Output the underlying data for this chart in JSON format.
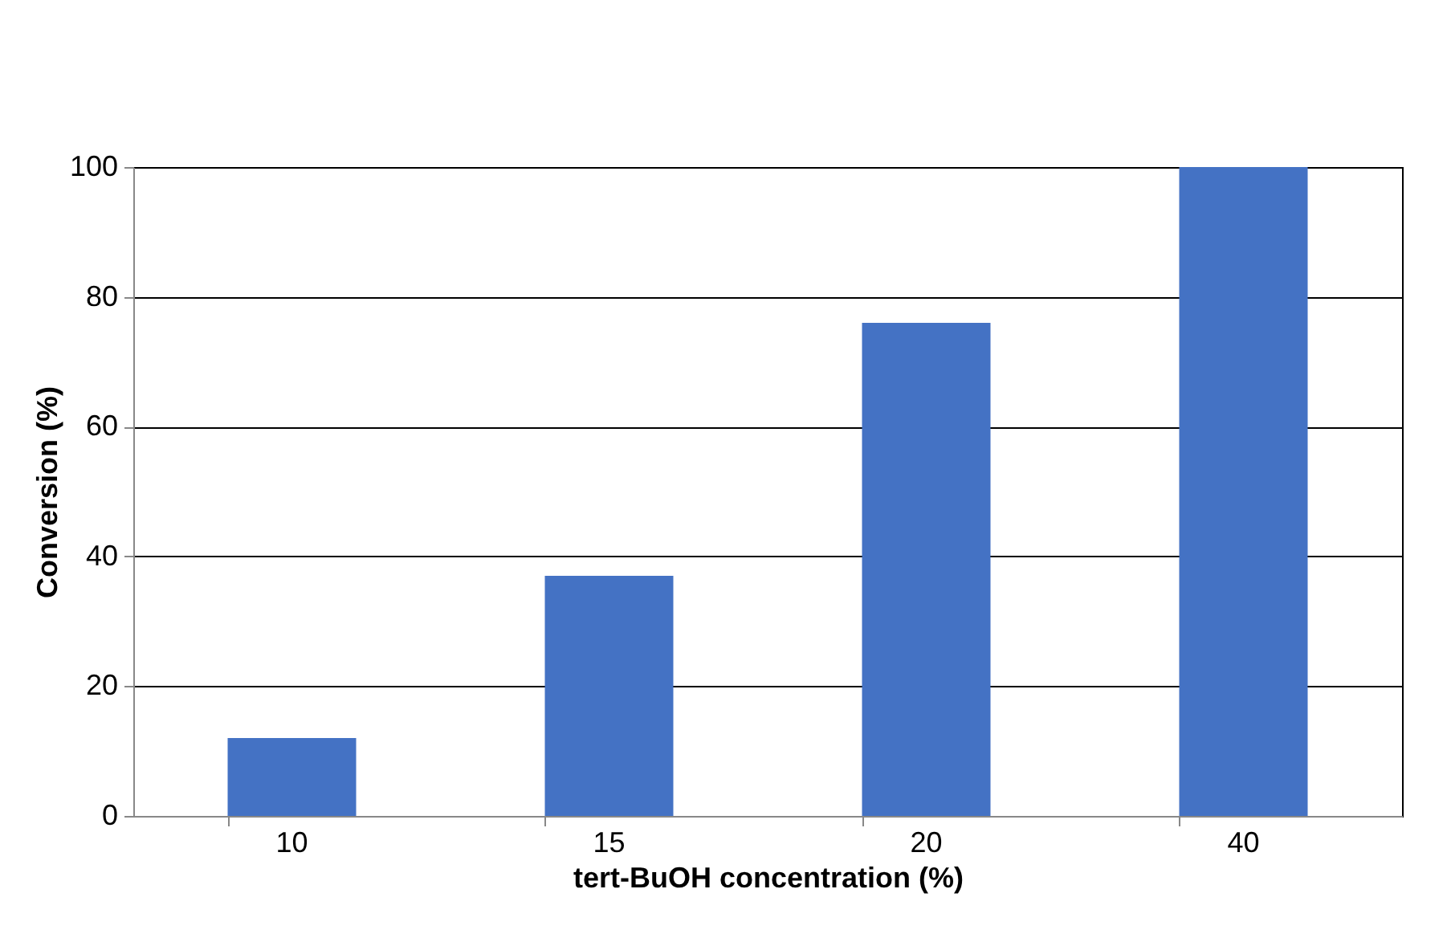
{
  "chart_data": {
    "type": "bar",
    "categories": [
      "10",
      "15",
      "20",
      "40"
    ],
    "values": [
      12,
      37,
      76,
      100
    ],
    "color": "#4472c4",
    "xlabel": "tert-BuOH concentration (%)",
    "ylabel": "Conversion (%)",
    "ylim": [
      0,
      100
    ],
    "yticks": [
      0,
      20,
      40,
      60,
      80,
      100
    ],
    "grid": "y"
  }
}
